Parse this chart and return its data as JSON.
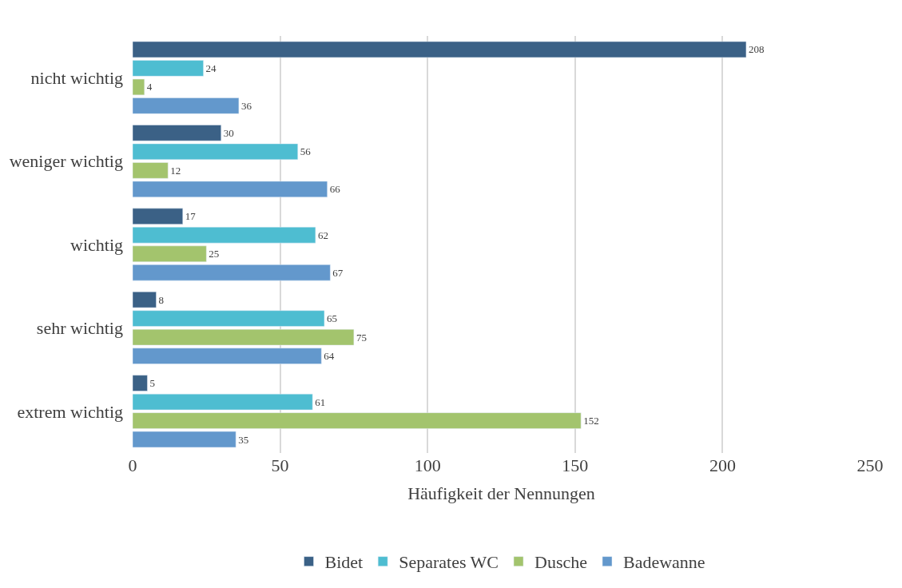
{
  "chart_data": {
    "type": "bar",
    "orientation": "horizontal",
    "xlabel": "Häufigkeit der Nennungen",
    "categories": [
      "nicht wichtig",
      "weniger wichtig",
      "wichtig",
      "sehr wichtig",
      "extrem wichtig"
    ],
    "series": [
      {
        "name": "Bidet",
        "color": "#3b6186",
        "values": [
          208,
          30,
          17,
          8,
          5
        ]
      },
      {
        "name": "Separates WC",
        "color": "#4ebdd1",
        "values": [
          24,
          56,
          62,
          65,
          61
        ]
      },
      {
        "name": "Dusche",
        "color": "#a3c46d",
        "values": [
          4,
          12,
          25,
          75,
          152
        ]
      },
      {
        "name": "Badewanne",
        "color": "#6398cc",
        "values": [
          36,
          66,
          67,
          64,
          35
        ]
      }
    ],
    "xlim": [
      0,
      250
    ],
    "xticks": [
      0,
      50,
      100,
      150,
      200,
      250
    ],
    "grid": "x",
    "legend": "bottom",
    "data_labels": true
  }
}
